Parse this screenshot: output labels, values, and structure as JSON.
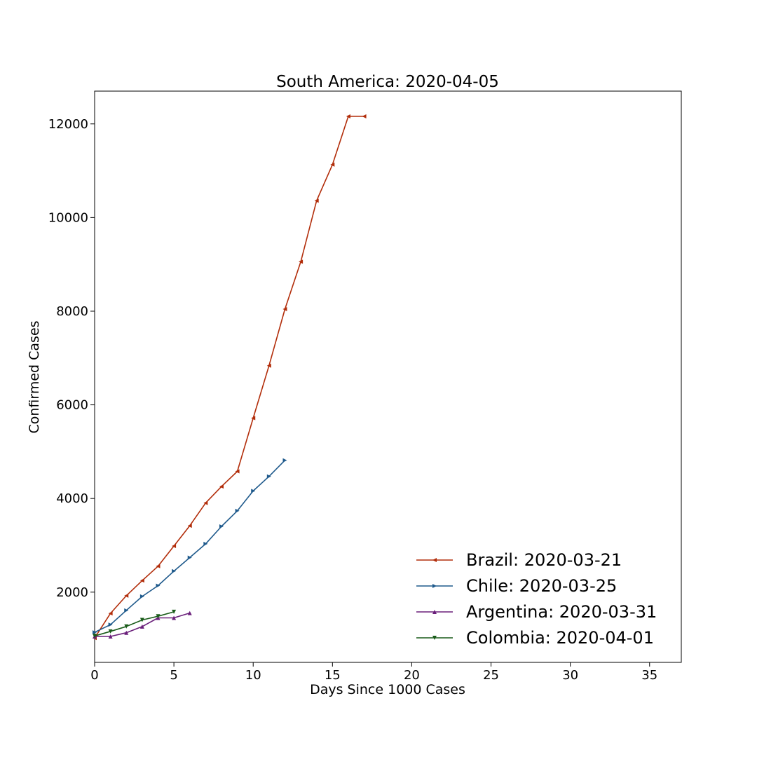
{
  "chart_data": {
    "type": "line",
    "title": "South America: 2020-04-05",
    "xlabel": "Days Since 1000 Cases",
    "ylabel": "Confirmed Cases",
    "xlim": [
      0,
      37
    ],
    "ylim": [
      500,
      12700
    ],
    "xticks": [
      0,
      5,
      10,
      15,
      20,
      25,
      30,
      35
    ],
    "yticks": [
      2000,
      4000,
      6000,
      8000,
      10000,
      12000
    ],
    "grid": false,
    "legend_position": "lower-right",
    "series": [
      {
        "name": "Brazil: 2020-03-21",
        "color": "#b22d0a",
        "marker": "triangle-left",
        "x": [
          0,
          1,
          2,
          3,
          4,
          5,
          6,
          7,
          8,
          9,
          10,
          11,
          12,
          13,
          14,
          15,
          16,
          17
        ],
        "y": [
          1021,
          1546,
          1924,
          2247,
          2554,
          2985,
          3417,
          3904,
          4256,
          4579,
          5717,
          6836,
          8044,
          9056,
          10360,
          11130,
          12161,
          12161
        ]
      },
      {
        "name": "Chile: 2020-03-25",
        "color": "#1f5a8c",
        "marker": "triangle-right",
        "x": [
          0,
          1,
          2,
          3,
          4,
          5,
          6,
          7,
          8,
          9,
          10,
          11,
          12
        ],
        "y": [
          1142,
          1306,
          1610,
          1909,
          2139,
          2449,
          2738,
          3031,
          3404,
          3737,
          4161,
          4471,
          4815
        ]
      },
      {
        "name": "Argentina: 2020-03-31",
        "color": "#6a1f7a",
        "marker": "triangle-up",
        "x": [
          0,
          1,
          2,
          3,
          4,
          5,
          6
        ],
        "y": [
          1054,
          1054,
          1133,
          1265,
          1451,
          1451,
          1554
        ]
      },
      {
        "name": "Colombia: 2020-04-01",
        "color": "#1a5c1a",
        "marker": "triangle-down",
        "x": [
          0,
          1,
          2,
          3,
          4,
          5
        ],
        "y": [
          1065,
          1161,
          1267,
          1406,
          1485,
          1579
        ]
      }
    ]
  }
}
